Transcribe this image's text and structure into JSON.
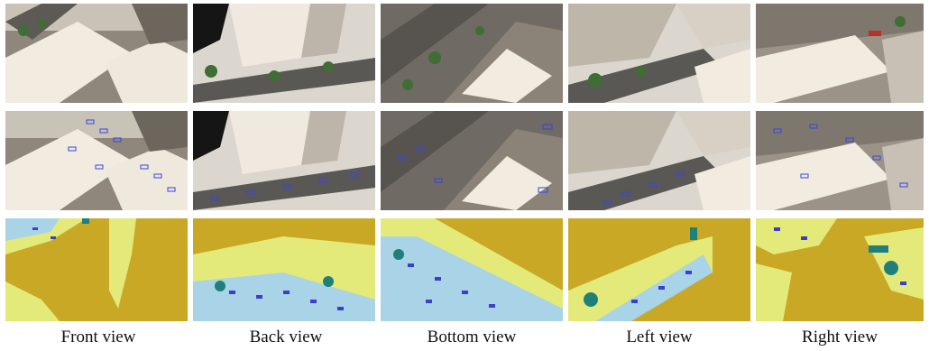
{
  "figure": {
    "columns": [
      {
        "label": "Front view"
      },
      {
        "label": "Back view"
      },
      {
        "label": "Bottom view"
      },
      {
        "label": "Left view"
      },
      {
        "label": "Right view"
      }
    ],
    "rows": [
      "rgb",
      "rgb-with-boxes",
      "segmentation"
    ],
    "colors": {
      "roof": "#f1ebe0",
      "building": "#b9b1a6",
      "street": "#5a5854",
      "plaza": "#dcd7ce",
      "palm": "#3f6d34",
      "box": "#3a43e6",
      "seg_background": "#c8a825",
      "seg_ground": "#e4ea7a",
      "seg_road": "#a9d3e6",
      "seg_vehicle": "#3d3fc9",
      "seg_tree": "#1f7f7a",
      "seg_pole": "#d9d4f0"
    }
  }
}
